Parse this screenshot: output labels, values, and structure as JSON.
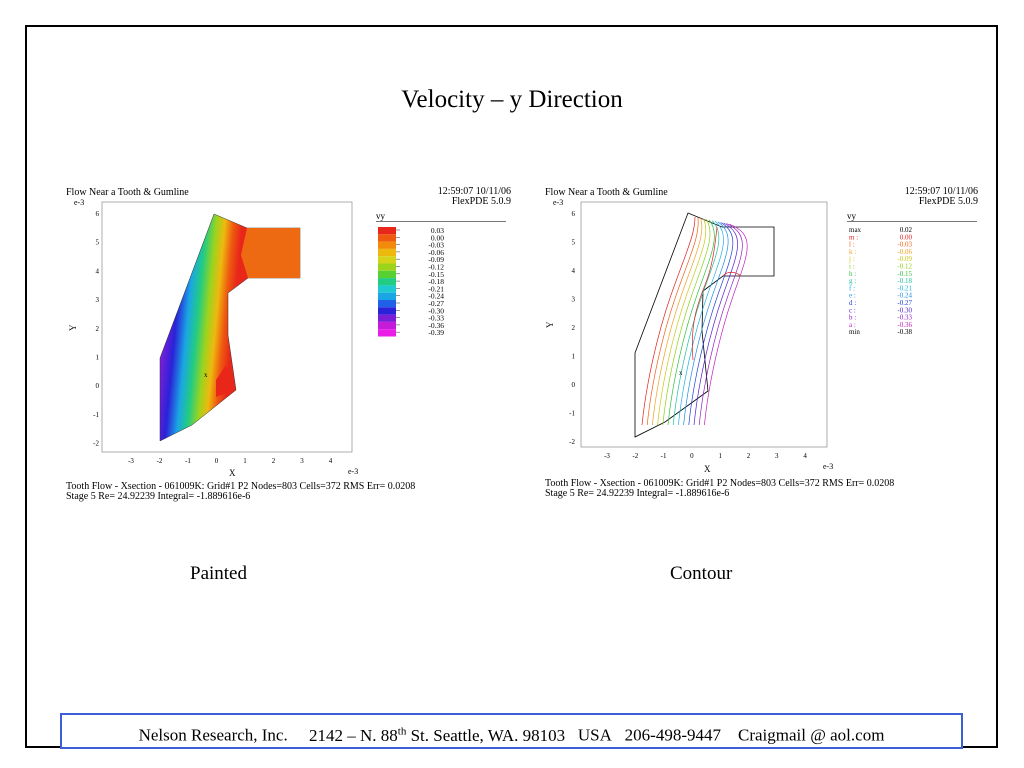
{
  "slide": {
    "title": "Velocity – y Direction",
    "captions": {
      "left": "Painted",
      "right": "Contour"
    }
  },
  "panels": [
    {
      "plot_title": "Flow Near a Tooth & Gumline",
      "timestamp": "12:59:07 10/11/06",
      "version": "FlexPDE 5.0.9",
      "exponent": "e-3",
      "footer_line1": "Tooth Flow - Xsection - 061009K:  Grid#1  P2  Nodes=803 Cells=372 RMS Err= 0.0208",
      "footer_line2": "Stage 5  Re=  24.92239  Integral= -1.889616e-6",
      "xlabel": "X",
      "ylabel": "Y",
      "legend_title": "vy"
    },
    {
      "plot_title": "Flow Near a Tooth & Gumline",
      "timestamp": "12:59:07 10/11/06",
      "version": "FlexPDE 5.0.9",
      "exponent": "e-3",
      "footer_line1": "Tooth Flow - Xsection - 061009K:  Grid#1  P2  Nodes=803 Cells=372 RMS Err= 0.0208",
      "footer_line2": "Stage 5  Re=  24.92239  Integral= -1.889616e-6",
      "xlabel": "X",
      "ylabel": "Y",
      "legend_title": "vy"
    }
  ],
  "axes": {
    "x_ticks": [
      "-3",
      "-2",
      "-1",
      "0",
      "1",
      "2",
      "3",
      "4"
    ],
    "y_ticks": [
      "6",
      "5",
      "4",
      "3",
      "2",
      "1",
      "0",
      "-1",
      "-2"
    ]
  },
  "painted_legend": {
    "values": [
      "0.03",
      "0.00",
      "-0.03",
      "-0.06",
      "-0.09",
      "-0.12",
      "-0.15",
      "-0.18",
      "-0.21",
      "-0.24",
      "-0.27",
      "-0.30",
      "-0.33",
      "-0.36",
      "-0.39"
    ],
    "colors": [
      "#e8271a",
      "#ee5a10",
      "#f28a0c",
      "#eeb90f",
      "#d6d41a",
      "#9cd41c",
      "#56d032",
      "#22cc82",
      "#1ecad0",
      "#1aa6e4",
      "#2060e8",
      "#2a22d8",
      "#7a1ed8",
      "#c41cd8",
      "#ea1ee6"
    ]
  },
  "contour_legend": {
    "labels": [
      "max",
      "m :",
      "l :",
      "k :",
      "j :",
      "i :",
      "h :",
      "g :",
      "f :",
      "e :",
      "d :",
      "c :",
      "b :",
      "a :",
      "min"
    ],
    "values": [
      "0.02",
      "0.00",
      "-0.03",
      "-0.06",
      "-0.09",
      "-0.12",
      "-0.15",
      "-0.18",
      "-0.21",
      "-0.24",
      "-0.27",
      "-0.30",
      "-0.33",
      "-0.36",
      "-0.38"
    ],
    "colors": [
      "#000000",
      "#e02020",
      "#f06018",
      "#f0a020",
      "#c8c818",
      "#8cd018",
      "#30c040",
      "#20c0a0",
      "#20b0e0",
      "#2090e0",
      "#2040d8",
      "#5020d0",
      "#9020c8",
      "#c020c0",
      "#000000"
    ]
  },
  "footer": {
    "company": "Nelson Research, Inc.",
    "address_pre": "2142 –  N. 88",
    "address_sup": "th",
    "address_post": " St. Seattle, WA. 98103",
    "country": "USA",
    "phone": "206-498-9447",
    "email": "Craigmail @ aol.com"
  }
}
